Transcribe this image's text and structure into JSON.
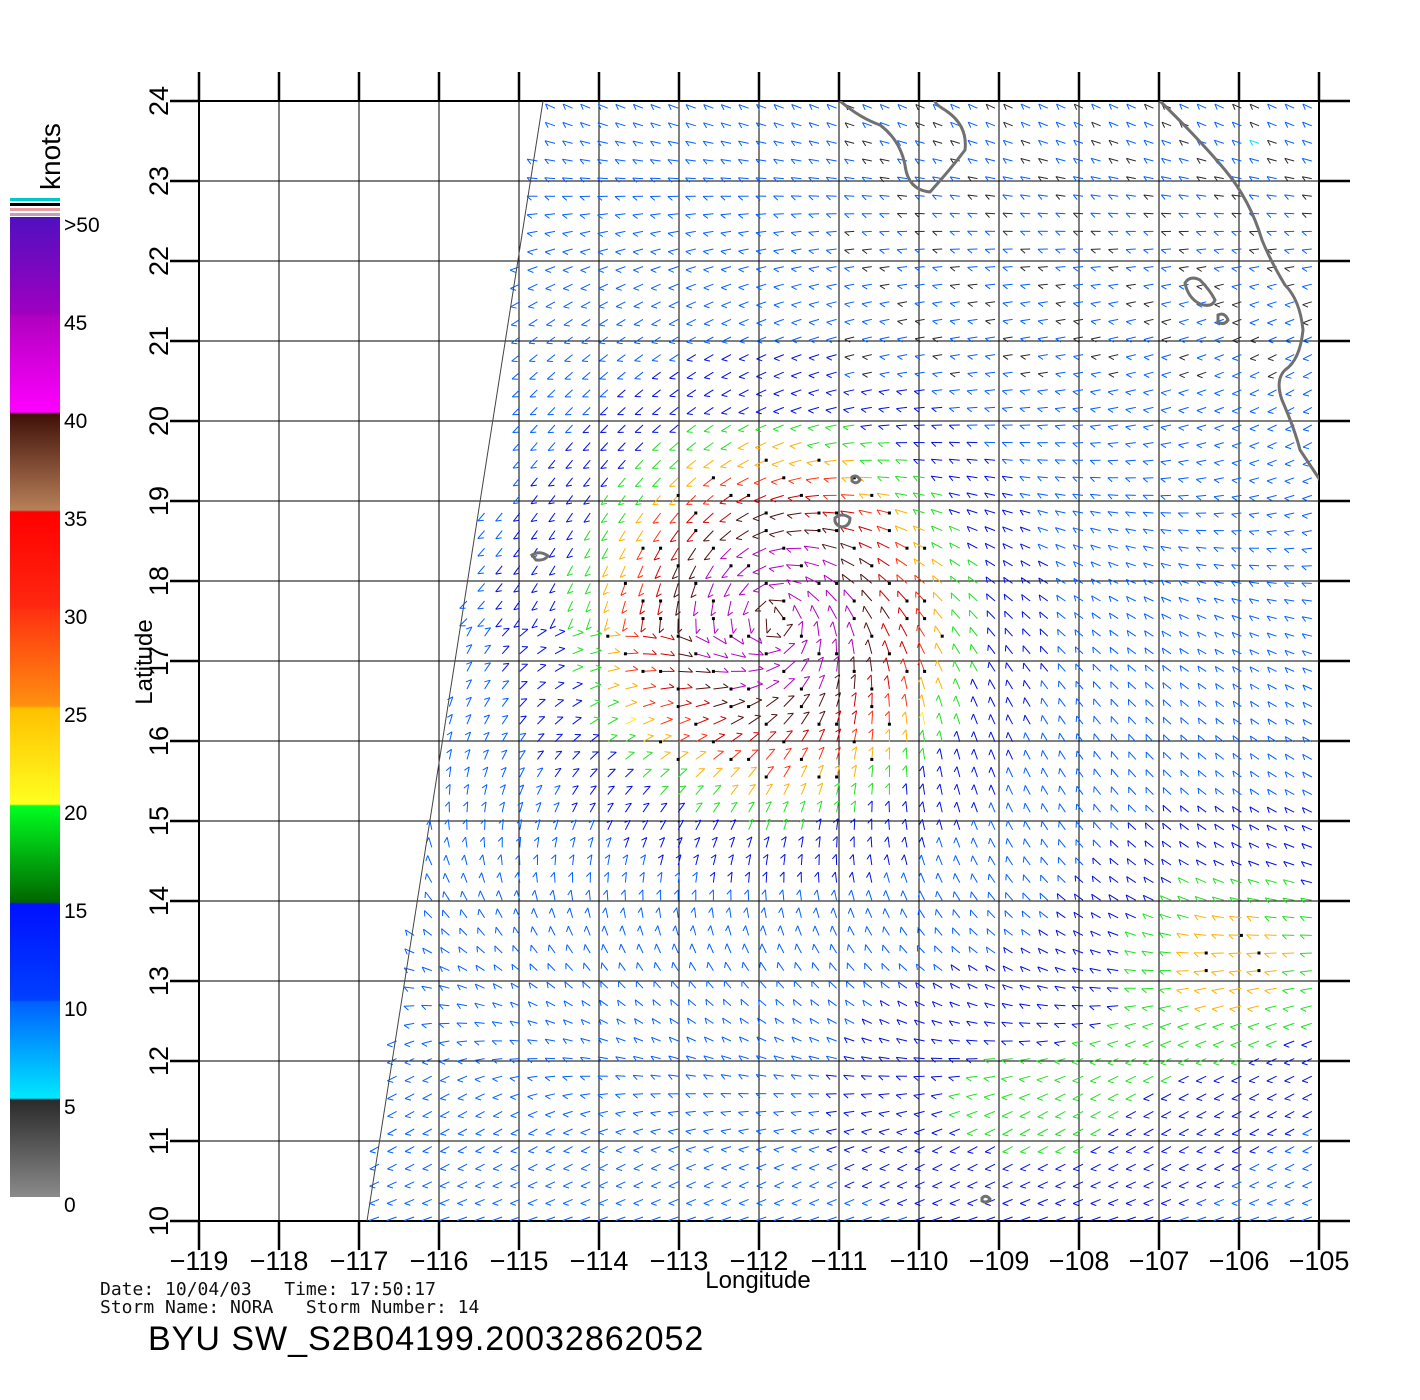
{
  "map": {
    "axes": {
      "xlabel": "Longitude",
      "ylabel": "Latitude",
      "x_ticks": [
        "−119",
        "−118",
        "−117",
        "−116",
        "−115",
        "−114",
        "−113",
        "−112",
        "−111",
        "−110",
        "−109",
        "−108",
        "−107",
        "−106",
        "−105"
      ],
      "y_ticks": [
        "10",
        "11",
        "12",
        "13",
        "14",
        "15",
        "16",
        "17",
        "18",
        "19",
        "20",
        "21",
        "22",
        "23",
        "24"
      ],
      "lon_range": [
        -119,
        -105
      ],
      "lat_range": [
        10,
        24
      ],
      "grid": true
    },
    "colorbar": {
      "unit": "knots",
      "labels": [
        ">50",
        "45",
        "40",
        "35",
        "30",
        "25",
        "20",
        "15",
        "10",
        "5",
        "0"
      ],
      "colors": {
        "0-5": [
          "#8a8a8a",
          "#2a2a2a"
        ],
        "5-10": [
          "#00e8ff",
          "#0060ff"
        ],
        "10-15": [
          "#0040ff",
          "#0010ff"
        ],
        "15-20": [
          "#006600",
          "#00ff20"
        ],
        "20-25": [
          "#ffff20",
          "#ffc000"
        ],
        "25-30": [
          "#ff9010",
          "#ff3010"
        ],
        "30-35": [
          "#ff2810",
          "#ff0000"
        ],
        "35-40": [
          "#b8805a",
          "#401008"
        ],
        "40-45": [
          "#ff00ff",
          "#b000c0"
        ],
        "45-50": [
          "#a000c0",
          "#5010c0"
        ]
      }
    },
    "storm_center": {
      "lon": -111.8,
      "lat": 17.5
    },
    "islands": [
      "Revillagigedo islands",
      "Baja California tip",
      "Mainland Mexico coast"
    ]
  },
  "info": {
    "date_line": "Date: 10/04/03   Time: 17:50:17",
    "storm_line": "Storm Name: NORA   Storm Number: 14",
    "title": "BYU SW_S2B04199.20032862052"
  }
}
